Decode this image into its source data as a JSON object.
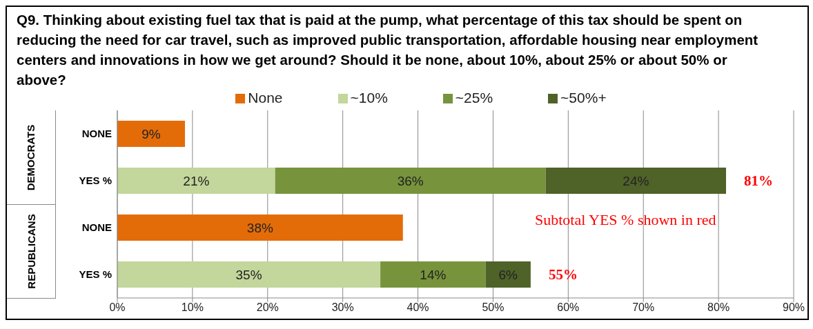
{
  "chart_data": {
    "type": "bar",
    "orientation": "horizontal",
    "stacked": true,
    "title": "Q9. Thinking about existing fuel tax that is paid at the pump, what percentage of this tax should be spent on reducing the need for car travel, such as improved public transportation, affordable housing near employment centers and innovations in how we get around? Should it be none, about 10%, about 25% or about 50% or above?",
    "categories": [
      "NONE",
      "YES %",
      "NONE",
      "YES %"
    ],
    "series": [
      {
        "name": "None",
        "color": "#e36c09",
        "values": [
          9,
          null,
          38,
          null
        ],
        "value_labels": [
          "9%",
          null,
          "38%",
          null
        ]
      },
      {
        "name": "~10%",
        "color": "#c3d69b",
        "values": [
          null,
          21,
          null,
          35
        ],
        "value_labels": [
          null,
          "21%",
          null,
          "35%"
        ]
      },
      {
        "name": "~25%",
        "color": "#77933c",
        "values": [
          null,
          36,
          null,
          14
        ],
        "value_labels": [
          null,
          "36%",
          null,
          "14%"
        ]
      },
      {
        "name": "~50%+",
        "color": "#4f6228",
        "values": [
          null,
          24,
          null,
          6
        ],
        "value_labels": [
          null,
          "24%",
          null,
          "6%"
        ]
      }
    ],
    "totals": [
      null,
      "81%",
      null,
      "55%"
    ],
    "annotations": [
      "DEMOCRATS",
      "REPUBLICANS",
      "Subtotal YES % shown in red"
    ],
    "xlim": [
      0,
      90
    ],
    "xticks": [
      {
        "value": 0,
        "label": "0%"
      },
      {
        "value": 10,
        "label": "10%"
      },
      {
        "value": 20,
        "label": "20%"
      },
      {
        "value": 30,
        "label": "30%"
      },
      {
        "value": 40,
        "label": "40%"
      },
      {
        "value": 50,
        "label": "50%"
      },
      {
        "value": 60,
        "label": "60%"
      },
      {
        "value": 70,
        "label": "70%"
      },
      {
        "value": 80,
        "label": "80%"
      },
      {
        "value": 90,
        "label": "90%"
      }
    ],
    "grid": "x",
    "legend": "top"
  }
}
